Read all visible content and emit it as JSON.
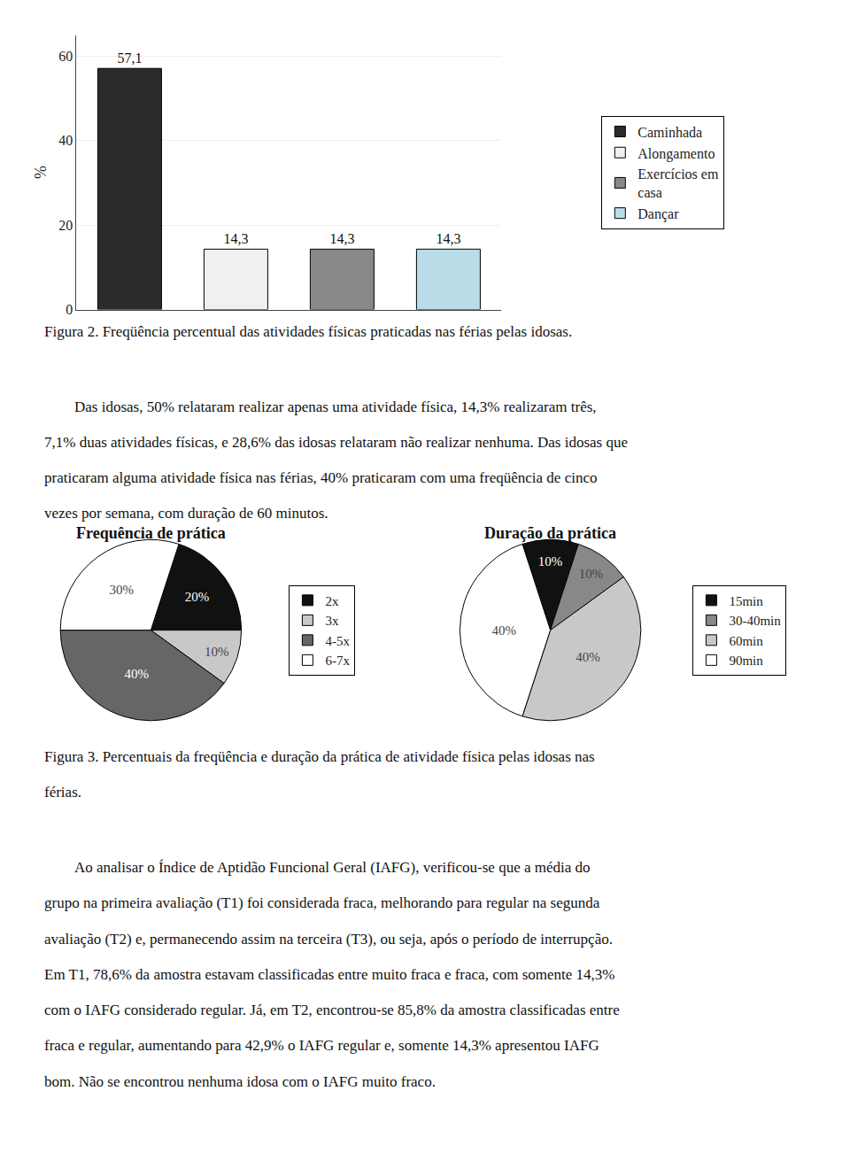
{
  "chart_data": [
    {
      "type": "bar",
      "categories": [
        "Caminhada",
        "Alongamento",
        "Exercícios em\ncasa",
        "Dançar"
      ],
      "values": [
        57.1,
        14.3,
        14.3,
        14.3
      ],
      "value_labels": [
        "57,1",
        "14,3",
        "14,3",
        "14,3"
      ],
      "colors": [
        "#2b2b2b",
        "#f0f0f0",
        "#888888",
        "#b8dde8"
      ],
      "data_labels": true,
      "ylabel": "%",
      "ylim": [
        0,
        65
      ],
      "yticks": [
        0,
        20,
        40,
        60
      ],
      "grid": true,
      "legend": "right",
      "tick_labels": "y",
      "annotations": [
        [
          "Figura 2. Freqüência percentual das atividades físicas praticadas nas férias pelas idosas."
        ],
        [
          "        Das idosas, 50% relataram realizar apenas uma atividade física, 14,3% realizaram três,",
          "7,1% duas atividades físicas, e 28,6% das idosas relataram não realizar nenhuma. Das idosas que",
          "praticaram alguma atividade física nas férias, 40% praticaram com uma freqüência de cinco",
          "vezes por semana, com duração de 60 minutos."
        ]
      ]
    },
    {
      "type": "pie",
      "title": "Frequência de prática",
      "categories": [
        "2x",
        "3x",
        "4-5x",
        "6-7x"
      ],
      "values": [
        20,
        10,
        40,
        30
      ],
      "value_labels": [
        "20%",
        "10%",
        "40%",
        "30%"
      ],
      "colors": [
        "#111111",
        "#c8c8c8",
        "#666666",
        "#ffffff"
      ],
      "data_labels": true,
      "legend": "right"
    },
    {
      "type": "pie",
      "title": "Duração da prática",
      "categories": [
        "15min",
        "30-40min",
        "60min",
        "90min"
      ],
      "values": [
        10,
        10,
        40,
        40
      ],
      "value_labels": [
        "10%",
        "10%",
        "40%",
        "40%"
      ],
      "colors": [
        "#111111",
        "#888888",
        "#c8c8c8",
        "#ffffff"
      ],
      "data_labels": true,
      "legend": "right",
      "annotations": [
        [
          "Figura 3. Percentuais da freqüência e duração da prática de atividade física pelas idosas nas",
          "férias."
        ],
        [
          "        Ao analisar o Índice de Aptidão Funcional Geral (IAFG), verificou-se que a média do",
          "grupo na primeira avaliação (T1) foi considerada fraca, melhorando para regular na segunda",
          "avaliação (T2) e, permanecendo assim na terceira (T3), ou seja, após o período de interrupção.",
          "Em T1, 78,6% da amostra estavam classificadas entre muito fraca e fraca, com somente 14,3%",
          "com o IAFG considerado regular. Já, em T2, encontrou-se 85,8% da amostra classificadas entre",
          "fraca e regular, aumentando para 42,9% o IAFG regular e, somente 14,3% apresentou IAFG",
          "bom. Não se encontrou nenhuma idosa com o IAFG muito fraco."
        ]
      ]
    }
  ]
}
